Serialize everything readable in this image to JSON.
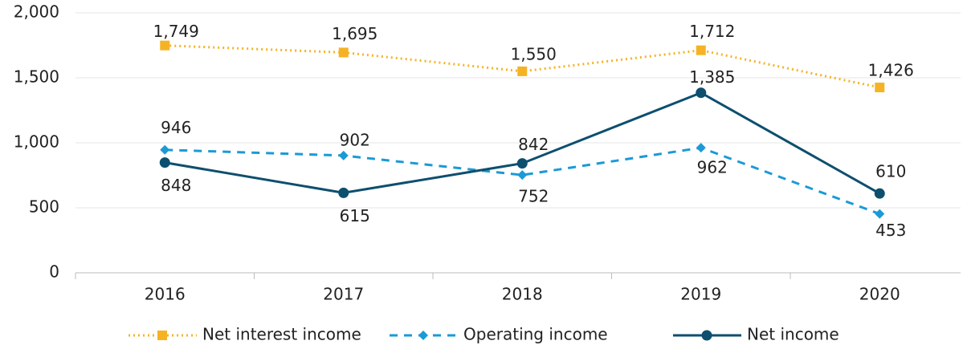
{
  "chart_data": {
    "type": "line",
    "categories": [
      "2016",
      "2017",
      "2018",
      "2019",
      "2020"
    ],
    "series": [
      {
        "name": "Net interest income",
        "color": "#f5b324",
        "values": [
          1749,
          1695,
          1550,
          1712,
          1426
        ],
        "value_labels": [
          "1,749",
          "1,695",
          "1,550",
          "1,712",
          "1,426"
        ]
      },
      {
        "name": "Operating income",
        "color": "#1b9ad6",
        "values": [
          946,
          902,
          752,
          962,
          453
        ],
        "value_labels": [
          "946",
          "902",
          "752",
          "962",
          "453"
        ]
      },
      {
        "name": "Net income",
        "color": "#0d4f6e",
        "values": [
          848,
          615,
          842,
          1385,
          610
        ],
        "value_labels": [
          "848",
          "615",
          "842",
          "1,385",
          "610"
        ]
      }
    ],
    "ylim": [
      0,
      2000
    ],
    "yticks": [
      0,
      500,
      {
        "value": 1000,
        "label": "1,000"
      },
      {
        "value": 1500,
        "label": "1,500"
      },
      {
        "value": 2000,
        "label": "2,000"
      }
    ],
    "grid": true
  }
}
